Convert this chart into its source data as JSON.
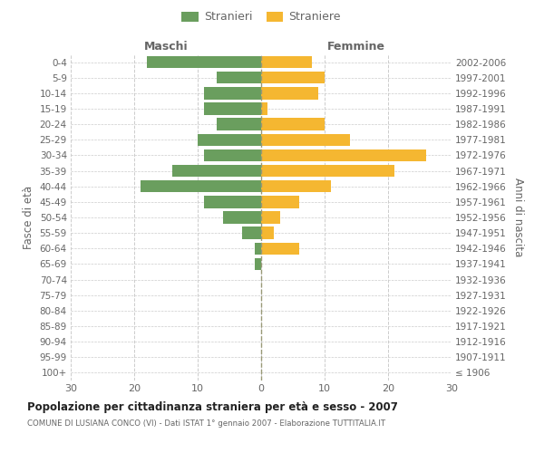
{
  "age_groups": [
    "100+",
    "95-99",
    "90-94",
    "85-89",
    "80-84",
    "75-79",
    "70-74",
    "65-69",
    "60-64",
    "55-59",
    "50-54",
    "45-49",
    "40-44",
    "35-39",
    "30-34",
    "25-29",
    "20-24",
    "15-19",
    "10-14",
    "5-9",
    "0-4"
  ],
  "birth_years": [
    "≤ 1906",
    "1907-1911",
    "1912-1916",
    "1917-1921",
    "1922-1926",
    "1927-1931",
    "1932-1936",
    "1937-1941",
    "1942-1946",
    "1947-1951",
    "1952-1956",
    "1957-1961",
    "1962-1966",
    "1967-1971",
    "1972-1976",
    "1977-1981",
    "1982-1986",
    "1987-1991",
    "1992-1996",
    "1997-2001",
    "2002-2006"
  ],
  "males": [
    0,
    0,
    0,
    0,
    0,
    0,
    0,
    1,
    1,
    3,
    6,
    9,
    19,
    14,
    9,
    10,
    7,
    9,
    9,
    7,
    18
  ],
  "females": [
    0,
    0,
    0,
    0,
    0,
    0,
    0,
    0,
    6,
    2,
    3,
    6,
    11,
    21,
    26,
    14,
    10,
    1,
    9,
    10,
    8
  ],
  "male_color": "#6a9e5e",
  "female_color": "#f5b731",
  "title": "Popolazione per cittadinanza straniera per età e sesso - 2007",
  "subtitle": "COMUNE DI LUSIANA CONCO (VI) - Dati ISTAT 1° gennaio 2007 - Elaborazione TUTTITALIA.IT",
  "xlabel_left": "Maschi",
  "xlabel_right": "Femmine",
  "ylabel_left": "Fasce di età",
  "ylabel_right": "Anni di nascita",
  "legend_male": "Stranieri",
  "legend_female": "Straniere",
  "xlim": 30,
  "background_color": "#ffffff",
  "grid_color": "#cccccc",
  "text_color": "#666666",
  "title_color": "#222222"
}
